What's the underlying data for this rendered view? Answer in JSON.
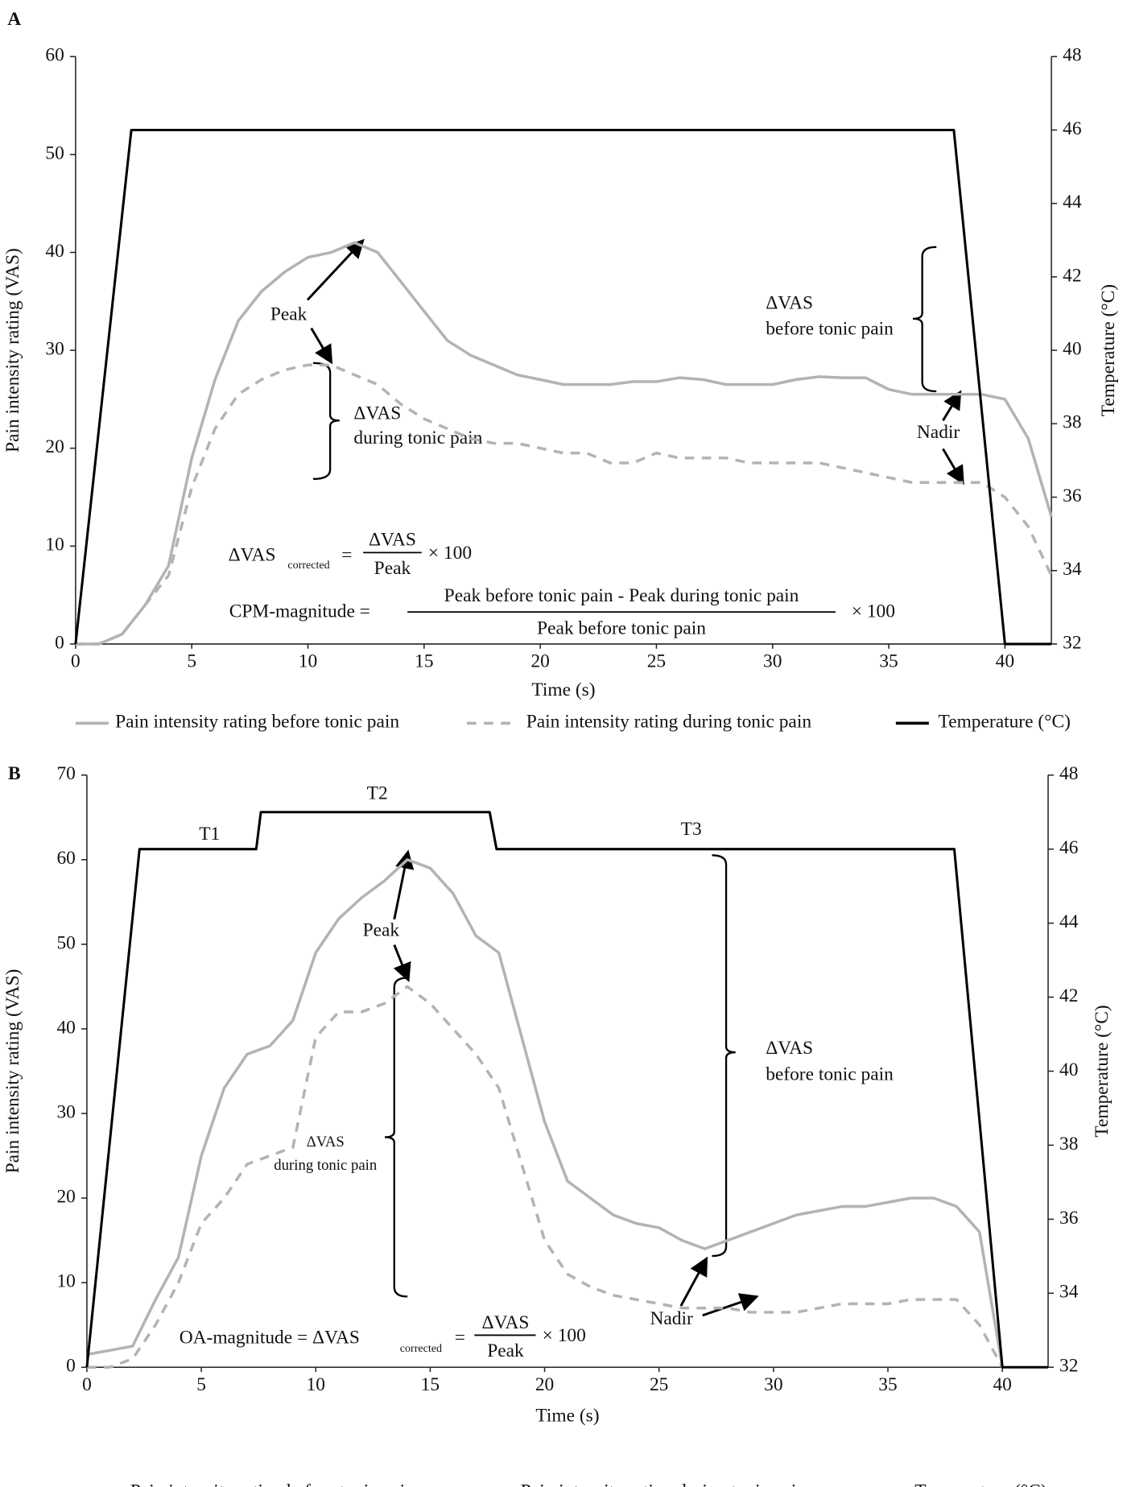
{
  "chart_data": [
    {
      "type": "line",
      "panel_label": "A",
      "x_label": "Time (s)",
      "y_label": "Pain intensity rating (VAS)",
      "y2_label": "Temperature (°C)",
      "xlim": [
        0,
        42
      ],
      "ylim": [
        0,
        60
      ],
      "y2lim": [
        32,
        48
      ],
      "xticks": [
        0,
        5,
        10,
        15,
        20,
        25,
        30,
        35,
        40
      ],
      "yticks": [
        0,
        10,
        20,
        30,
        40,
        50,
        60
      ],
      "y2ticks": [
        32,
        34,
        36,
        38,
        40,
        42,
        44,
        46,
        48
      ],
      "x": [
        0,
        1,
        2,
        3,
        4,
        5,
        6,
        7,
        8,
        9,
        10,
        11,
        12,
        13,
        14,
        15,
        16,
        17,
        18,
        19,
        20,
        21,
        22,
        23,
        24,
        25,
        26,
        27,
        28,
        29,
        30,
        31,
        32,
        33,
        34,
        35,
        36,
        37,
        38,
        39,
        40,
        41,
        42
      ],
      "series": [
        {
          "name": "Pain intensity rating before tonic pain",
          "color": "#b3b3b3",
          "dash": false,
          "values": [
            0,
            0,
            1,
            4,
            8,
            19,
            27,
            33,
            36,
            38,
            39.5,
            40,
            41,
            40,
            37,
            34,
            31,
            29.5,
            28.5,
            27.5,
            27,
            26.5,
            26.5,
            26.5,
            26.8,
            26.8,
            27.2,
            27,
            26.5,
            26.5,
            26.5,
            27,
            27.3,
            27.2,
            27.2,
            26,
            25.5,
            25.5,
            25.5,
            25.5,
            25,
            21,
            13
          ]
        },
        {
          "name": "Pain intensity rating during tonic pain",
          "color": "#b3b3b3",
          "dash": true,
          "values": [
            0,
            0,
            1,
            4,
            7,
            16,
            22,
            25.5,
            27,
            28,
            28.5,
            28.5,
            27.5,
            26.5,
            24.5,
            23,
            22,
            21,
            20.5,
            20.5,
            20,
            19.5,
            19.5,
            18.5,
            18.5,
            19.5,
            19,
            19,
            19,
            18.5,
            18.5,
            18.5,
            18.5,
            18,
            17.5,
            17,
            16.5,
            16.5,
            16.5,
            16.5,
            15,
            12,
            7
          ]
        },
        {
          "name": "Temperature (°C)",
          "color": "#000000",
          "dash": false,
          "axis": "y2",
          "x": [
            0,
            2.4,
            37.8,
            40,
            42
          ],
          "values": [
            32,
            46,
            46,
            32,
            32
          ]
        }
      ],
      "annotations": [
        "Peak",
        "ΔVAS",
        "during tonic pain",
        "ΔVAS",
        "before tonic pain",
        "Nadir",
        "ΔVAS",
        "corrected",
        "=",
        "ΔVAS",
        "Peak",
        "× 100",
        "CPM-magnitude =",
        "Peak before tonic pain - Peak during tonic pain",
        "Peak before tonic pain",
        "× 100"
      ]
    },
    {
      "type": "line",
      "panel_label": "B",
      "x_label": "Time (s)",
      "y_label": "Pain intensity rating (VAS)",
      "y2_label": "Temperature (°C)",
      "xlim": [
        0,
        42
      ],
      "ylim": [
        0,
        70
      ],
      "y2lim": [
        32,
        48
      ],
      "xticks": [
        0,
        5,
        10,
        15,
        20,
        25,
        30,
        35,
        40
      ],
      "yticks": [
        0,
        10,
        20,
        30,
        40,
        50,
        60,
        70
      ],
      "y2ticks": [
        32,
        34,
        36,
        38,
        40,
        42,
        44,
        46,
        48
      ],
      "x": [
        0,
        1,
        2,
        3,
        4,
        5,
        6,
        7,
        8,
        9,
        10,
        11,
        12,
        13,
        14,
        15,
        16,
        17,
        18,
        19,
        20,
        21,
        22,
        23,
        24,
        25,
        26,
        27,
        28,
        29,
        30,
        31,
        32,
        33,
        34,
        35,
        36,
        37,
        38,
        39,
        40
      ],
      "series": [
        {
          "name": "Pain intensity rating before tonic pain",
          "color": "#b3b3b3",
          "dash": false,
          "values": [
            1.5,
            2,
            2.5,
            8,
            13,
            25,
            33,
            37,
            38,
            41,
            49,
            53,
            55.5,
            57.5,
            60,
            59,
            56,
            51,
            49,
            39,
            29,
            22,
            20,
            18,
            17,
            16.5,
            15,
            14,
            15,
            16,
            17,
            18,
            18.5,
            19,
            19,
            19.5,
            20,
            20,
            19,
            16,
            0
          ]
        },
        {
          "name": "Pain intensity rating during tonic pain",
          "color": "#b3b3b3",
          "dash": true,
          "values": [
            0,
            0,
            1,
            5,
            10,
            17,
            20,
            24,
            25,
            26,
            39,
            42,
            42,
            43,
            45,
            43,
            40,
            37,
            33,
            24,
            15,
            11,
            9.5,
            8.5,
            8,
            7.5,
            7,
            7,
            7,
            6.5,
            6.5,
            6.5,
            7,
            7.5,
            7.5,
            7.5,
            8,
            8,
            8,
            5,
            0
          ]
        },
        {
          "name": "Temperature (°C)",
          "color": "#000000",
          "dash": false,
          "axis": "y2",
          "x": [
            0,
            2.3,
            7.4,
            7.6,
            17.6,
            17.9,
            37.9,
            40,
            42
          ],
          "values": [
            32,
            46,
            46,
            47,
            47,
            46,
            46,
            32,
            32
          ]
        }
      ],
      "annotations": [
        "T1",
        "T2",
        "T3",
        "Peak",
        "ΔVAS",
        "during tonic pain",
        "ΔVAS",
        "before tonic pain",
        "Nadir",
        "OA-magnitude = ΔVAS",
        "corrected",
        "=",
        "ΔVAS",
        "Peak",
        "× 100"
      ]
    }
  ]
}
